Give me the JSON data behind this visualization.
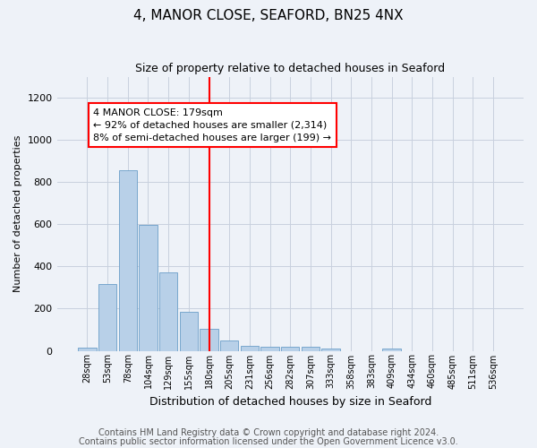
{
  "title": "4, MANOR CLOSE, SEAFORD, BN25 4NX",
  "subtitle": "Size of property relative to detached houses in Seaford",
  "xlabel": "Distribution of detached houses by size in Seaford",
  "ylabel": "Number of detached properties",
  "categories": [
    "28sqm",
    "53sqm",
    "78sqm",
    "104sqm",
    "129sqm",
    "155sqm",
    "180sqm",
    "205sqm",
    "231sqm",
    "256sqm",
    "282sqm",
    "307sqm",
    "333sqm",
    "358sqm",
    "383sqm",
    "409sqm",
    "434sqm",
    "460sqm",
    "485sqm",
    "511sqm",
    "536sqm"
  ],
  "values": [
    15,
    318,
    855,
    598,
    370,
    187,
    105,
    48,
    22,
    18,
    18,
    20,
    10,
    0,
    0,
    12,
    0,
    0,
    0,
    0,
    0
  ],
  "bar_color": "#b8d0e8",
  "bar_edge_color": "#6a9ec8",
  "vline_x": 6.0,
  "annotation_text": "4 MANOR CLOSE: 179sqm\n← 92% of detached houses are smaller (2,314)\n8% of semi-detached houses are larger (199) →",
  "ylim": [
    0,
    1300
  ],
  "yticks": [
    0,
    200,
    400,
    600,
    800,
    1000,
    1200
  ],
  "footer_line1": "Contains HM Land Registry data © Crown copyright and database right 2024.",
  "footer_line2": "Contains public sector information licensed under the Open Government Licence v3.0.",
  "background_color": "#eef2f8",
  "grid_color": "#c8d0de",
  "title_fontsize": 11,
  "subtitle_fontsize": 9,
  "annot_fontsize": 8,
  "footer_fontsize": 7,
  "ylabel_fontsize": 8,
  "xlabel_fontsize": 9,
  "tick_fontsize": 7
}
